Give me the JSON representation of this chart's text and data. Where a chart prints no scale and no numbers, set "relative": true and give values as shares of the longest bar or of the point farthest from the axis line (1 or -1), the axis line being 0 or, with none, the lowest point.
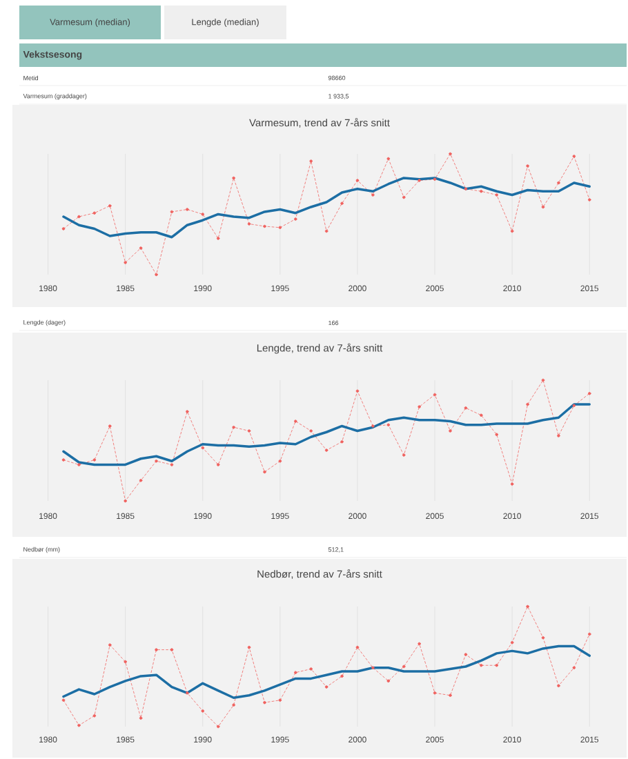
{
  "chart_data": [
    {
      "type": "other",
      "title": "Vekstsesong",
      "annotations": [
        "Varmesum (median)",
        "Lengde (median)",
        "Metid",
        "98660"
      ]
    },
    {
      "type": "line",
      "title": "Varmesum, trend av 7-års snitt",
      "annotations": [
        "Varmesum (graddager)",
        "1 933,5"
      ],
      "relative": true,
      "grid": "x",
      "x": [
        1981,
        1982,
        1983,
        1984,
        1985,
        1986,
        1987,
        1988,
        1989,
        1990,
        1991,
        1992,
        1993,
        1994,
        1995,
        1996,
        1997,
        1998,
        1999,
        2000,
        2001,
        2002,
        2003,
        2004,
        2005,
        2006,
        2007,
        2008,
        2009,
        2010,
        2011,
        2012,
        2013,
        2014,
        2015
      ],
      "xlim": [
        1977.7,
        2017.4
      ],
      "xticks": [
        1980,
        1985,
        1990,
        1995,
        2000,
        2005,
        2010,
        2015
      ],
      "series": [
        {
          "color": "#f0625f",
          "line_style": "dashed",
          "marker": "circle",
          "values": [
            0.38,
            0.48,
            0.51,
            0.57,
            0.1,
            0.22,
            0,
            0.52,
            0.54,
            0.5,
            0.3,
            0.8,
            0.42,
            0.4,
            0.39,
            0.46,
            0.94,
            0.36,
            0.59,
            0.78,
            0.66,
            0.96,
            0.64,
            0.78,
            0.79,
            1,
            0.71,
            0.69,
            0.66,
            0.36,
            0.9,
            0.56,
            0.76,
            0.98,
            0.62
          ]
        },
        {
          "color": "#1c6ea4",
          "line_style": "solid",
          "marker": "none",
          "values": [
            0.48,
            0.41,
            0.38,
            0.32,
            0.34,
            0.35,
            0.35,
            0.31,
            0.41,
            0.45,
            0.5,
            0.48,
            0.47,
            0.52,
            0.54,
            0.51,
            0.56,
            0.6,
            0.68,
            0.71,
            0.69,
            0.75,
            0.8,
            0.79,
            0.8,
            0.76,
            0.71,
            0.73,
            0.69,
            0.66,
            0.7,
            0.69,
            0.69,
            0.76,
            0.73
          ]
        }
      ]
    },
    {
      "type": "line",
      "title": "Lengde, trend av 7-års snitt",
      "annotations": [
        "Lengde (dager)",
        "166"
      ],
      "relative": true,
      "grid": "x",
      "x": [
        1981,
        1982,
        1983,
        1984,
        1985,
        1986,
        1987,
        1988,
        1989,
        1990,
        1991,
        1992,
        1993,
        1994,
        1995,
        1996,
        1997,
        1998,
        1999,
        2000,
        2001,
        2002,
        2003,
        2004,
        2005,
        2006,
        2007,
        2008,
        2009,
        2010,
        2011,
        2012,
        2013,
        2014,
        2015
      ],
      "xlim": [
        1977.7,
        2017.4
      ],
      "xticks": [
        1980,
        1985,
        1990,
        1995,
        2000,
        2005,
        2010,
        2015
      ],
      "series": [
        {
          "color": "#f0625f",
          "line_style": "dashed",
          "marker": "circle",
          "values": [
            0.34,
            0.3,
            0.34,
            0.62,
            0,
            0.17,
            0.33,
            0.3,
            0.74,
            0.44,
            0.3,
            0.61,
            0.58,
            0.24,
            0.33,
            0.66,
            0.58,
            0.42,
            0.49,
            0.91,
            0.62,
            0.63,
            0.38,
            0.78,
            0.88,
            0.58,
            0.77,
            0.71,
            0.55,
            0.14,
            0.8,
            1,
            0.54,
            0.79,
            0.89
          ]
        },
        {
          "color": "#1c6ea4",
          "line_style": "solid",
          "marker": "none",
          "values": [
            0.41,
            0.32,
            0.3,
            0.3,
            0.3,
            0.35,
            0.37,
            0.33,
            0.41,
            0.47,
            0.46,
            0.46,
            0.45,
            0.46,
            0.48,
            0.47,
            0.53,
            0.57,
            0.62,
            0.58,
            0.61,
            0.67,
            0.69,
            0.67,
            0.67,
            0.66,
            0.63,
            0.63,
            0.64,
            0.64,
            0.64,
            0.67,
            0.69,
            0.8,
            0.8
          ]
        }
      ]
    },
    {
      "type": "line",
      "title": "Nedbør, trend av 7-års snitt",
      "annotations": [
        "Nedbør (mm)",
        "512,1"
      ],
      "relative": true,
      "grid": "x",
      "x": [
        1981,
        1982,
        1983,
        1984,
        1985,
        1986,
        1987,
        1988,
        1989,
        1990,
        1991,
        1992,
        1993,
        1994,
        1995,
        1996,
        1997,
        1998,
        1999,
        2000,
        2001,
        2002,
        2003,
        2004,
        2005,
        2006,
        2007,
        2008,
        2009,
        2010,
        2011,
        2012,
        2013,
        2014,
        2015
      ],
      "xlim": [
        1977.7,
        2017.4
      ],
      "xticks": [
        1980,
        1985,
        1990,
        1995,
        2000,
        2005,
        2010,
        2015
      ],
      "series": [
        {
          "color": "#f0625f",
          "line_style": "dashed",
          "marker": "circle",
          "values": [
            0.22,
            0.01,
            0.09,
            0.68,
            0.54,
            0.07,
            0.64,
            0.64,
            0.28,
            0.13,
            0,
            0.18,
            0.66,
            0.2,
            0.22,
            0.45,
            0.48,
            0.33,
            0.42,
            0.66,
            0.49,
            0.38,
            0.5,
            0.69,
            0.28,
            0.26,
            0.6,
            0.51,
            0.51,
            0.7,
            1,
            0.74,
            0.34,
            0.49,
            0.77
          ]
        },
        {
          "color": "#1c6ea4",
          "line_style": "solid",
          "marker": "none",
          "values": [
            0.25,
            0.31,
            0.27,
            0.33,
            0.38,
            0.42,
            0.43,
            0.33,
            0.28,
            0.36,
            0.3,
            0.24,
            0.26,
            0.3,
            0.35,
            0.4,
            0.4,
            0.43,
            0.46,
            0.46,
            0.49,
            0.49,
            0.46,
            0.46,
            0.46,
            0.48,
            0.5,
            0.55,
            0.61,
            0.63,
            0.61,
            0.65,
            0.67,
            0.67,
            0.59
          ]
        }
      ]
    }
  ]
}
